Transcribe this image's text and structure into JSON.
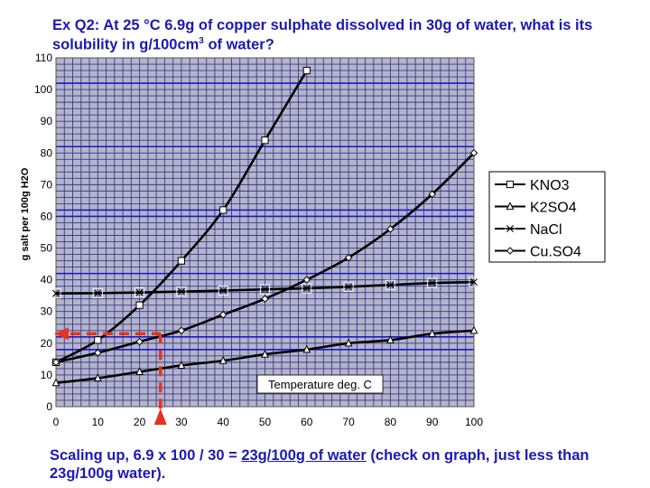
{
  "question": {
    "text": "Ex Q2: At 25 °C 6.9g of copper sulphate dissolved in 30g of water, what is its solubility in g/100cm",
    "sup": "3",
    "tail": " of water?"
  },
  "answer": {
    "prefix": "Scaling up, 6.9 x 100 / 30 = ",
    "underlined": "23g/100g of water",
    "suffix": " (check on graph, just less than 23g/100g water)."
  },
  "chart_data": {
    "type": "line",
    "ylabel": "g salt per 100g H2O",
    "xlabel_box": "Temperature deg. C",
    "xlim": [
      0,
      100
    ],
    "ylim": [
      0,
      110
    ],
    "x_ticks": [
      0,
      10,
      20,
      30,
      40,
      50,
      60,
      70,
      80,
      90,
      100
    ],
    "y_ticks": [
      0,
      10,
      20,
      30,
      40,
      50,
      60,
      70,
      80,
      90,
      100,
      110
    ],
    "minor_grid_step": 2,
    "grid": true,
    "legend_position": "right",
    "series": [
      {
        "name": "KNO3",
        "marker": "square",
        "x": [
          0,
          10,
          20,
          30,
          40,
          50,
          60
        ],
        "y": [
          14,
          21,
          32,
          46,
          62,
          84,
          106
        ]
      },
      {
        "name": "K2SO4",
        "marker": "triangle",
        "x": [
          0,
          10,
          20,
          30,
          40,
          50,
          60,
          70,
          80,
          90,
          100
        ],
        "y": [
          7.5,
          9,
          11,
          13,
          14.5,
          16.5,
          18,
          20,
          21,
          23,
          24
        ]
      },
      {
        "name": "NaCl",
        "marker": "x",
        "x": [
          0,
          10,
          20,
          30,
          40,
          50,
          60,
          70,
          80,
          90,
          100
        ],
        "y": [
          35.7,
          35.8,
          36,
          36.3,
          36.6,
          37,
          37.3,
          37.8,
          38.4,
          39,
          39.3
        ]
      },
      {
        "name": "Cu.SO4",
        "marker": "diamond",
        "x": [
          0,
          10,
          20,
          30,
          40,
          50,
          60,
          70,
          80,
          90,
          100
        ],
        "y": [
          14,
          17,
          20.5,
          24,
          29,
          34,
          40,
          47,
          56,
          67,
          80
        ]
      }
    ],
    "annotation": {
      "temperature": 25,
      "solubility": 23,
      "color": "#e8321e"
    },
    "colors": {
      "plot_bg": "#b4b4cc",
      "grid": "#3a3a86",
      "highlight_band": "#1a1ac8",
      "series": "#000000"
    }
  }
}
